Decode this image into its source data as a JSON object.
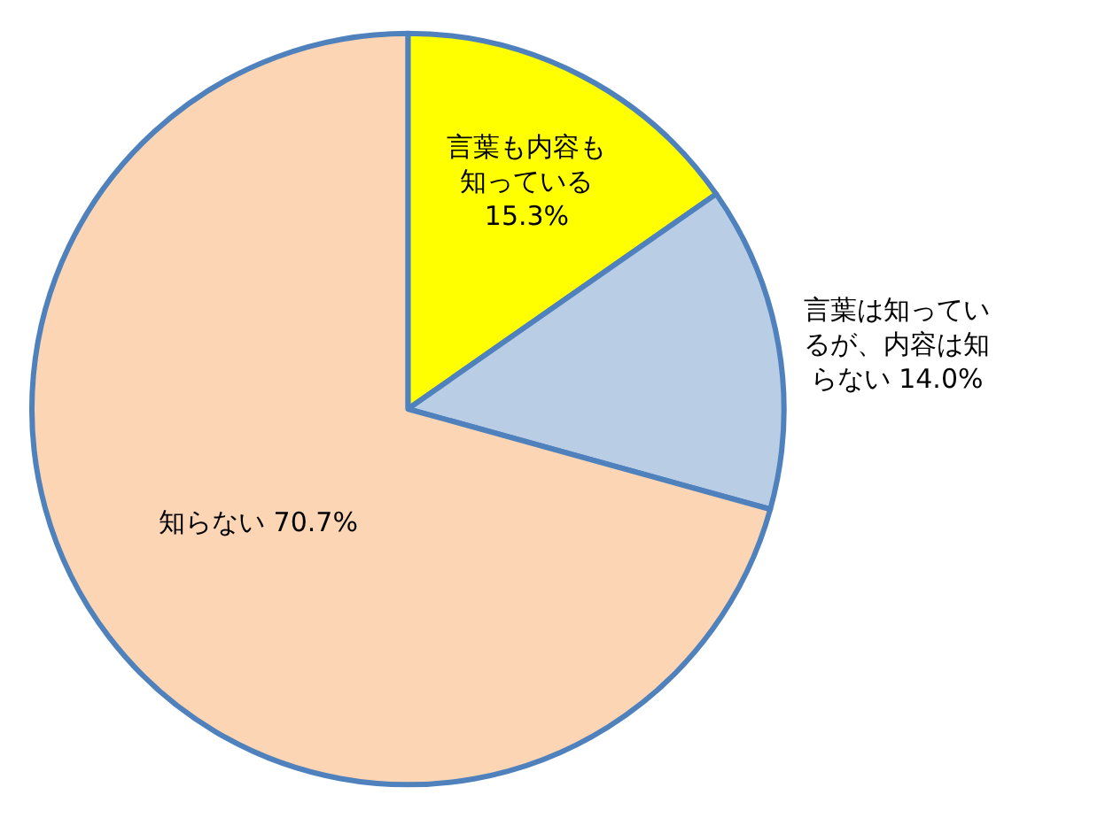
{
  "chart_data": {
    "type": "pie",
    "categories": [
      "言葉も内容も知っている",
      "言葉は知っているが、内容は知らない",
      "知らない"
    ],
    "values": [
      15.3,
      14.0,
      70.7
    ],
    "value_labels": [
      "15.3%",
      "14.0%",
      "70.7%"
    ],
    "colors": [
      "#ffff00",
      "#b9cde5",
      "#fcd5b5"
    ],
    "legend": false
  }
}
